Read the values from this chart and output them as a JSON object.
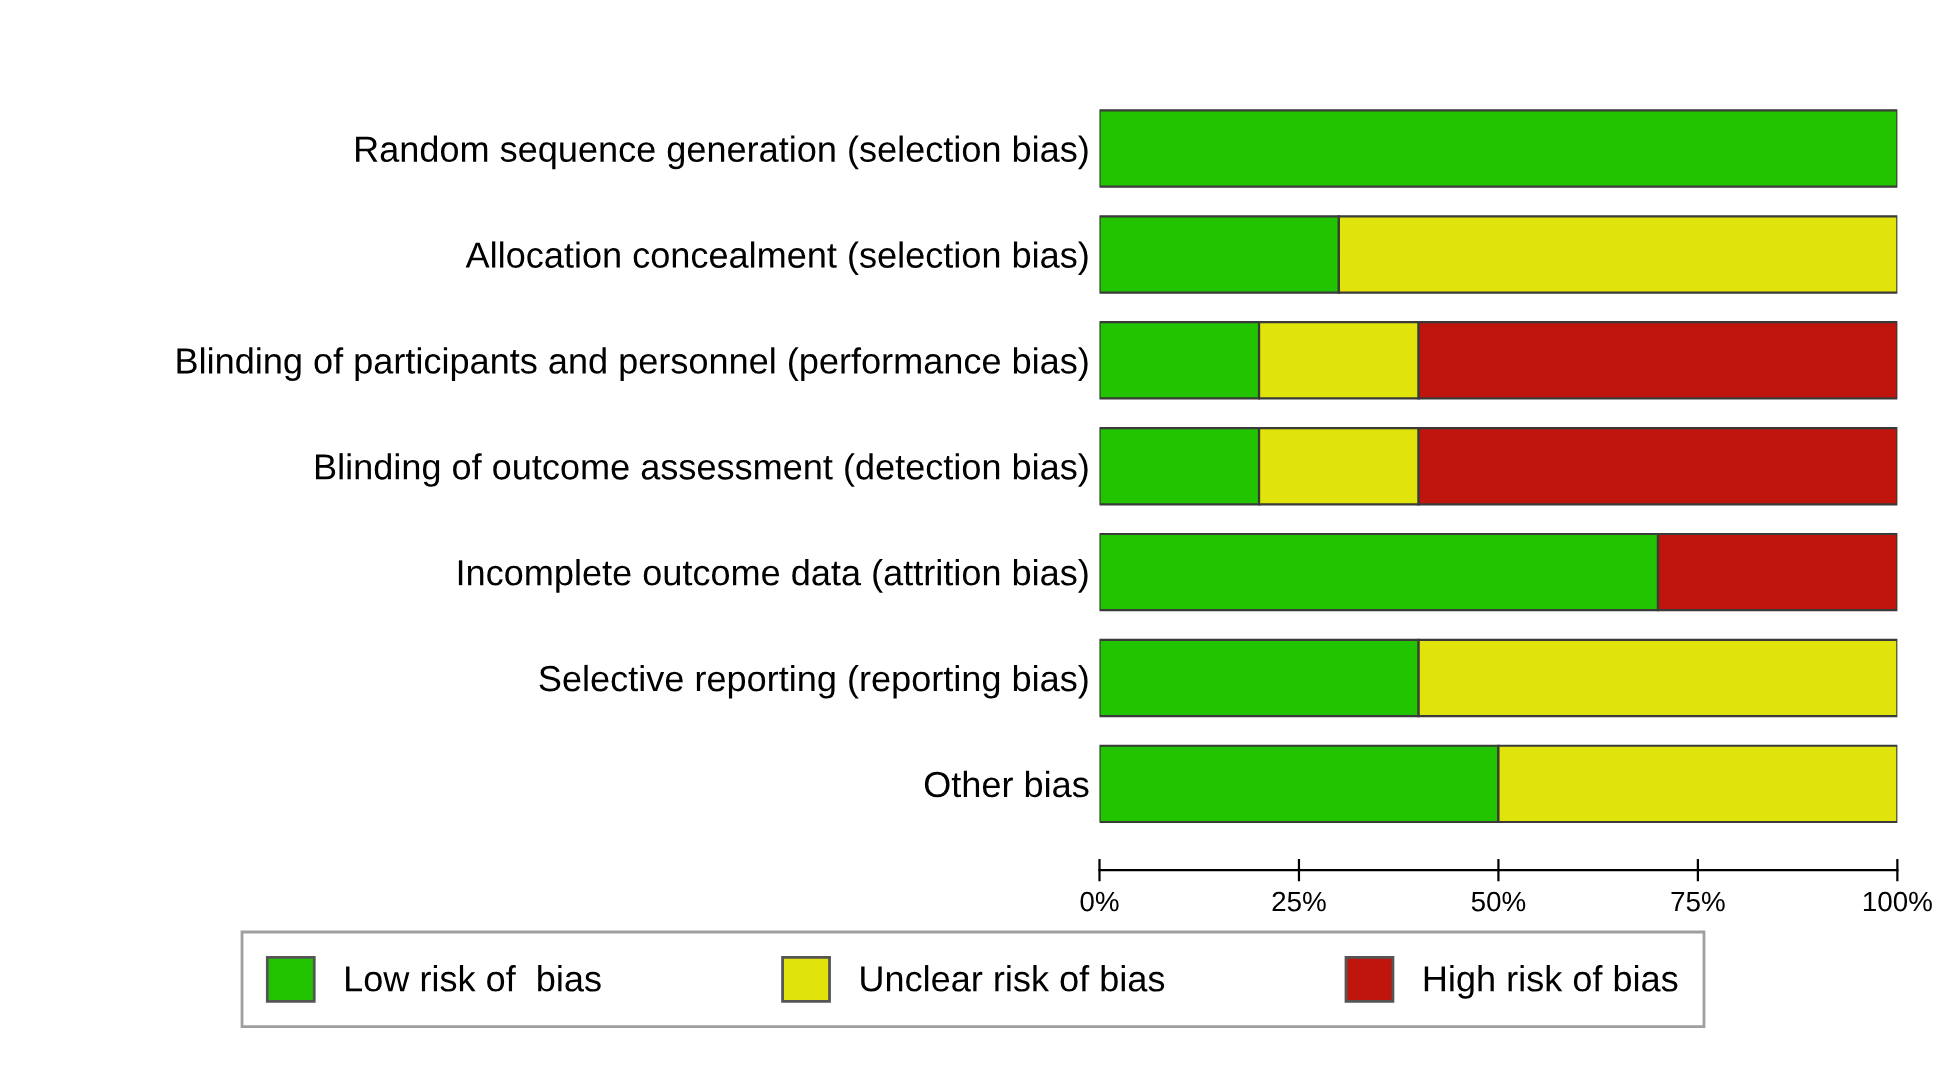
{
  "chart_data": {
    "type": "bar",
    "orientation": "horizontal",
    "stacked": true,
    "categories": [
      "Random sequence generation (selection bias)",
      "Allocation concealment (selection bias)",
      "Blinding of participants and personnel (performance bias)",
      "Blinding of outcome assessment (detection bias)",
      "Incomplete outcome data (attrition bias)",
      "Selective reporting (reporting bias)",
      "Other bias"
    ],
    "series": [
      {
        "name": "Low risk of  bias",
        "color": "#22c400",
        "values": [
          100,
          30,
          20,
          20,
          70,
          40,
          50
        ]
      },
      {
        "name": "Unclear risk of bias",
        "color": "#e0e40a",
        "values": [
          0,
          70,
          20,
          20,
          0,
          60,
          50
        ]
      },
      {
        "name": "High risk of bias",
        "color": "#c0150c",
        "values": [
          0,
          0,
          60,
          60,
          30,
          0,
          0
        ]
      }
    ],
    "xlim": [
      0,
      100
    ],
    "xticks": [
      {
        "value": 0,
        "label": "0%"
      },
      {
        "value": 25,
        "label": "25%"
      },
      {
        "value": 50,
        "label": "50%"
      },
      {
        "value": 75,
        "label": "75%"
      },
      {
        "value": 100,
        "label": "100%"
      }
    ],
    "grid": false,
    "legend": "bottom"
  }
}
